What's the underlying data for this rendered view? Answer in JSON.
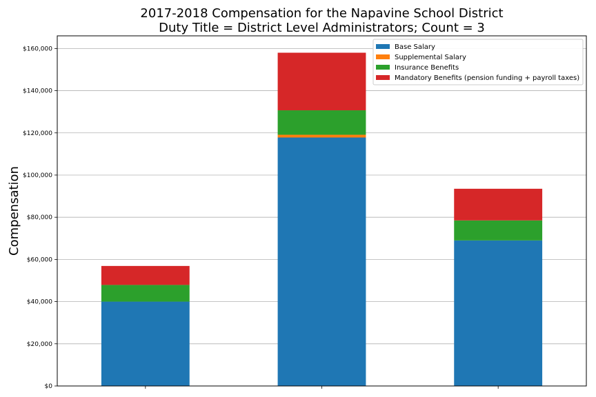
{
  "chart_data": {
    "type": "bar",
    "stacked": true,
    "title": [
      "2017-2018 Compensation for the Napavine School District",
      "Duty Title = District Level Administrators; Count = 3"
    ],
    "xlabel": "",
    "ylabel": "Compensation",
    "categories": [
      "",
      "",
      ""
    ],
    "ylim": [
      0,
      166000
    ],
    "yticks": [
      0,
      20000,
      40000,
      60000,
      80000,
      100000,
      120000,
      140000,
      160000
    ],
    "ytick_labels": [
      "$0",
      "$20,000",
      "$40,000",
      "$60,000",
      "$80,000",
      "$100,000",
      "$120,000",
      "$140,000",
      "$160,000"
    ],
    "grid": "y",
    "legend_position": "top-right",
    "series": [
      {
        "name": "Base Salary",
        "color": "#1f77b4",
        "values": [
          40000,
          117800,
          69000
        ]
      },
      {
        "name": "Supplemental Salary",
        "color": "#ff7f0e",
        "values": [
          0,
          1300,
          0
        ]
      },
      {
        "name": "Insurance Benefits",
        "color": "#2ca02c",
        "values": [
          7900,
          11600,
          9500
        ]
      },
      {
        "name": "Mandatory Benefits (pension funding + payroll taxes)",
        "color": "#d62728",
        "values": [
          9000,
          27300,
          15000
        ]
      }
    ]
  }
}
